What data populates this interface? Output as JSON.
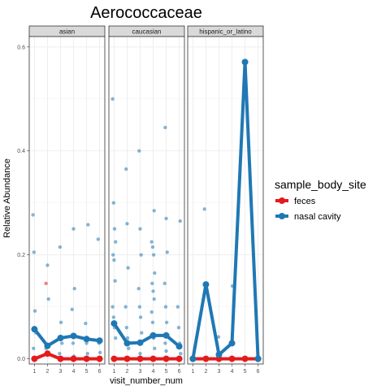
{
  "chart_data": {
    "type": "line",
    "title": "Aerococcaceae",
    "xlabel": "visit_number_num",
    "ylabel": "Relative Abundance",
    "x_ticks": [
      1,
      2,
      3,
      4,
      5,
      6
    ],
    "y_ticks": [
      0.0,
      0.2,
      0.4,
      0.6
    ],
    "y_tick_labels": [
      "0.0",
      "0.2",
      "0.4",
      "0.6"
    ],
    "ylim": [
      -0.01,
      0.62
    ],
    "xlim": [
      0.6,
      6.4
    ],
    "grid": true,
    "legend": {
      "title": "sample_body_site",
      "placement": "right",
      "entries": [
        {
          "name": "feces",
          "color": "#e41a1c"
        },
        {
          "name": "nasal cavity",
          "color": "#1f78b4"
        }
      ]
    },
    "facets": [
      {
        "label": "asian",
        "series": [
          {
            "name": "feces",
            "color": "#e41a1c",
            "x": [
              1,
              2,
              3,
              4,
              5,
              6
            ],
            "y": [
              0.0,
              0.01,
              0.0,
              0.0,
              0.0,
              0.0
            ]
          },
          {
            "name": "nasal cavity",
            "color": "#1f78b4",
            "x": [
              1,
              2,
              3,
              4,
              5,
              6
            ],
            "y": [
              0.057,
              0.025,
              0.04,
              0.044,
              0.038,
              0.035
            ]
          }
        ],
        "points": {
          "feces": [
            [
              2,
              0.145
            ],
            [
              1,
              0.0
            ],
            [
              3,
              0.0
            ],
            [
              4,
              0.0
            ],
            [
              5,
              0.0
            ],
            [
              6,
              0.0
            ]
          ],
          "nasal cavity": [
            [
              1,
              0.277
            ],
            [
              1,
              0.205
            ],
            [
              1,
              0.092
            ],
            [
              1,
              0.05
            ],
            [
              1,
              0.02
            ],
            [
              2,
              0.18
            ],
            [
              2,
              0.115
            ],
            [
              2,
              0.02
            ],
            [
              3,
              0.215
            ],
            [
              3,
              0.07
            ],
            [
              3,
              0.03
            ],
            [
              3,
              0.01
            ],
            [
              4,
              0.25
            ],
            [
              4,
              0.135
            ],
            [
              4,
              0.095
            ],
            [
              4,
              0.03
            ],
            [
              4,
              0.005
            ],
            [
              5,
              0.258
            ],
            [
              5,
              0.068
            ],
            [
              5,
              0.03
            ],
            [
              5,
              0.01
            ],
            [
              6,
              0.23
            ],
            [
              6,
              0.03
            ],
            [
              6,
              0.012
            ]
          ]
        }
      },
      {
        "label": "caucasian",
        "series": [
          {
            "name": "feces",
            "color": "#e41a1c",
            "x": [
              1,
              2,
              3,
              4,
              5,
              6
            ],
            "y": [
              0.0,
              0.0,
              0.0,
              0.0,
              0.0,
              0.0
            ]
          },
          {
            "name": "nasal cavity",
            "color": "#1f78b4",
            "x": [
              1,
              2,
              3,
              4,
              5,
              6
            ],
            "y": [
              0.068,
              0.03,
              0.031,
              0.045,
              0.045,
              0.024
            ]
          }
        ],
        "points": {
          "feces": [
            [
              1,
              0.0
            ],
            [
              2,
              0.0
            ],
            [
              3,
              0.0
            ],
            [
              4,
              0.0
            ],
            [
              5,
              0.0
            ],
            [
              6,
              0.0
            ]
          ],
          "nasal cavity": [
            [
              1,
              0.5
            ],
            [
              1,
              0.3
            ],
            [
              1,
              0.25
            ],
            [
              1,
              0.225
            ],
            [
              1,
              0.2
            ],
            [
              1,
              0.19
            ],
            [
              1,
              0.15
            ],
            [
              1,
              0.1
            ],
            [
              1,
              0.08
            ],
            [
              1,
              0.06
            ],
            [
              1,
              0.04
            ],
            [
              2,
              0.365
            ],
            [
              2,
              0.26
            ],
            [
              2,
              0.175
            ],
            [
              2,
              0.1
            ],
            [
              2,
              0.06
            ],
            [
              2,
              0.04
            ],
            [
              2,
              0.02
            ],
            [
              3,
              0.4
            ],
            [
              3,
              0.25
            ],
            [
              3,
              0.2
            ],
            [
              3,
              0.135
            ],
            [
              3,
              0.1
            ],
            [
              3,
              0.08
            ],
            [
              3,
              0.05
            ],
            [
              3,
              0.03
            ],
            [
              3,
              0.01
            ],
            [
              4,
              0.285
            ],
            [
              4,
              0.225
            ],
            [
              4,
              0.215
            ],
            [
              4,
              0.2
            ],
            [
              4,
              0.165
            ],
            [
              4,
              0.145
            ],
            [
              4,
              0.13
            ],
            [
              4,
              0.115
            ],
            [
              4,
              0.09
            ],
            [
              4,
              0.07
            ],
            [
              4,
              0.04
            ],
            [
              4,
              0.02
            ],
            [
              5,
              0.445
            ],
            [
              5,
              0.27
            ],
            [
              5,
              0.205
            ],
            [
              5,
              0.145
            ],
            [
              5,
              0.1
            ],
            [
              5,
              0.07
            ],
            [
              5,
              0.045
            ],
            [
              5,
              0.03
            ],
            [
              5,
              0.015
            ],
            [
              6,
              0.265
            ],
            [
              6,
              0.1
            ],
            [
              6,
              0.06
            ],
            [
              6,
              0.03
            ],
            [
              6,
              0.01
            ]
          ]
        }
      },
      {
        "label": "hispanic_or_latino",
        "series": [
          {
            "name": "feces",
            "color": "#e41a1c",
            "x": [
              1,
              2,
              3,
              4,
              5,
              6
            ],
            "y": [
              0.0,
              0.0,
              0.0,
              0.0,
              0.0,
              0.0
            ]
          },
          {
            "name": "nasal cavity",
            "color": "#1f78b4",
            "x": [
              1,
              2,
              3,
              4,
              5,
              6
            ],
            "y": [
              0.0,
              0.143,
              0.008,
              0.03,
              0.571,
              0.0
            ]
          }
        ],
        "points": {
          "feces": [
            [
              1,
              0.0
            ],
            [
              2,
              0.0
            ],
            [
              3,
              0.0
            ],
            [
              4,
              0.0
            ],
            [
              5,
              0.0
            ],
            [
              6,
              0.0
            ]
          ],
          "nasal cavity": [
            [
              2,
              0.288
            ],
            [
              3,
              0.042
            ],
            [
              4,
              0.14
            ],
            [
              4,
              0.03
            ],
            [
              5,
              0.571
            ]
          ]
        }
      }
    ]
  }
}
